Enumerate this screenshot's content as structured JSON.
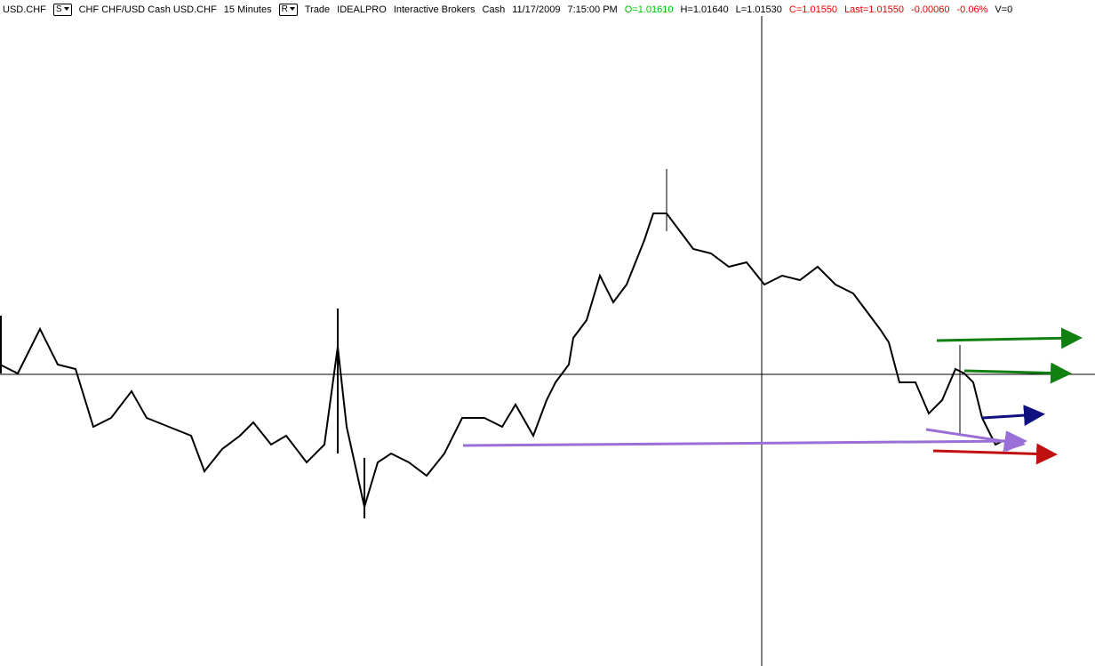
{
  "header": {
    "items": [
      {
        "text": "USD.CHF",
        "color": "#000000"
      },
      {
        "text": "S",
        "color": "#000000",
        "button": true
      },
      {
        "text": "CHF CHF/USD Cash USD.CHF",
        "color": "#000000"
      },
      {
        "text": "15 Minutes",
        "color": "#000000"
      },
      {
        "text": "R",
        "color": "#000000",
        "button": true
      },
      {
        "text": "Trade",
        "color": "#000000"
      },
      {
        "text": "IDEALPRO",
        "color": "#000000"
      },
      {
        "text": "Interactive Brokers",
        "color": "#000000"
      },
      {
        "text": "Cash",
        "color": "#000000"
      },
      {
        "text": "11/17/2009",
        "color": "#000000"
      },
      {
        "text": "7:15:00 PM",
        "color": "#000000"
      },
      {
        "text": "O=1.01610",
        "color": "#00c000"
      },
      {
        "text": "H=1.01640",
        "color": "#000000"
      },
      {
        "text": "L=1.01530",
        "color": "#000000"
      },
      {
        "text": "C=1.01550",
        "color": "#e00000"
      },
      {
        "text": "Last=1.01550",
        "color": "#e00000"
      },
      {
        "text": "-0.00060",
        "color": "#e00000"
      },
      {
        "text": "-0.06%",
        "color": "#e00000"
      },
      {
        "text": "V=0",
        "color": "#000000"
      }
    ]
  }
}
